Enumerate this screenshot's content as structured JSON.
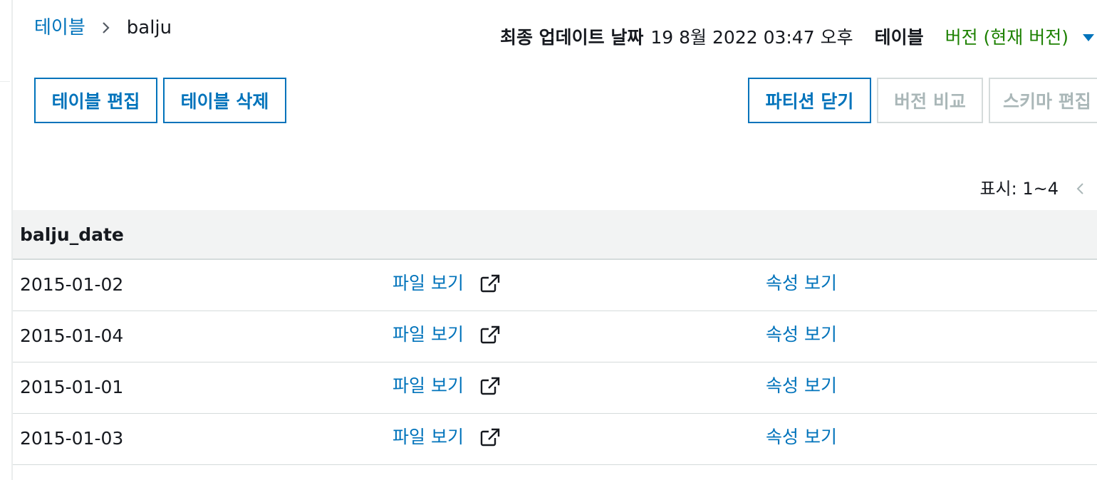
{
  "breadcrumb": {
    "parent": "테이블",
    "current": "balju"
  },
  "meta": {
    "last_updated_label": "최종 업데이트 날짜",
    "last_updated_value": "19 8월 2022 03:47 오후",
    "table_label": "테이블",
    "version_value": "버전 (현재 버전)"
  },
  "toolbar": {
    "edit_table": "테이블 편집",
    "delete_table": "테이블 삭제",
    "close_partitions": "파티션 닫기",
    "compare_versions": "버전 비교",
    "edit_schema": "스키마 편집"
  },
  "pagination": {
    "text": "표시: 1~4"
  },
  "table": {
    "header": "balju_date",
    "rows": [
      {
        "date": "2015-01-02",
        "files": "파일 보기",
        "properties": "속성 보기"
      },
      {
        "date": "2015-01-04",
        "files": "파일 보기",
        "properties": "속성 보기"
      },
      {
        "date": "2015-01-01",
        "files": "파일 보기",
        "properties": "속성 보기"
      },
      {
        "date": "2015-01-03",
        "files": "파일 보기",
        "properties": "속성 보기"
      }
    ]
  },
  "colors": {
    "link": "#0073bb",
    "version": "#1d8102",
    "disabled": "#aab7b8"
  }
}
